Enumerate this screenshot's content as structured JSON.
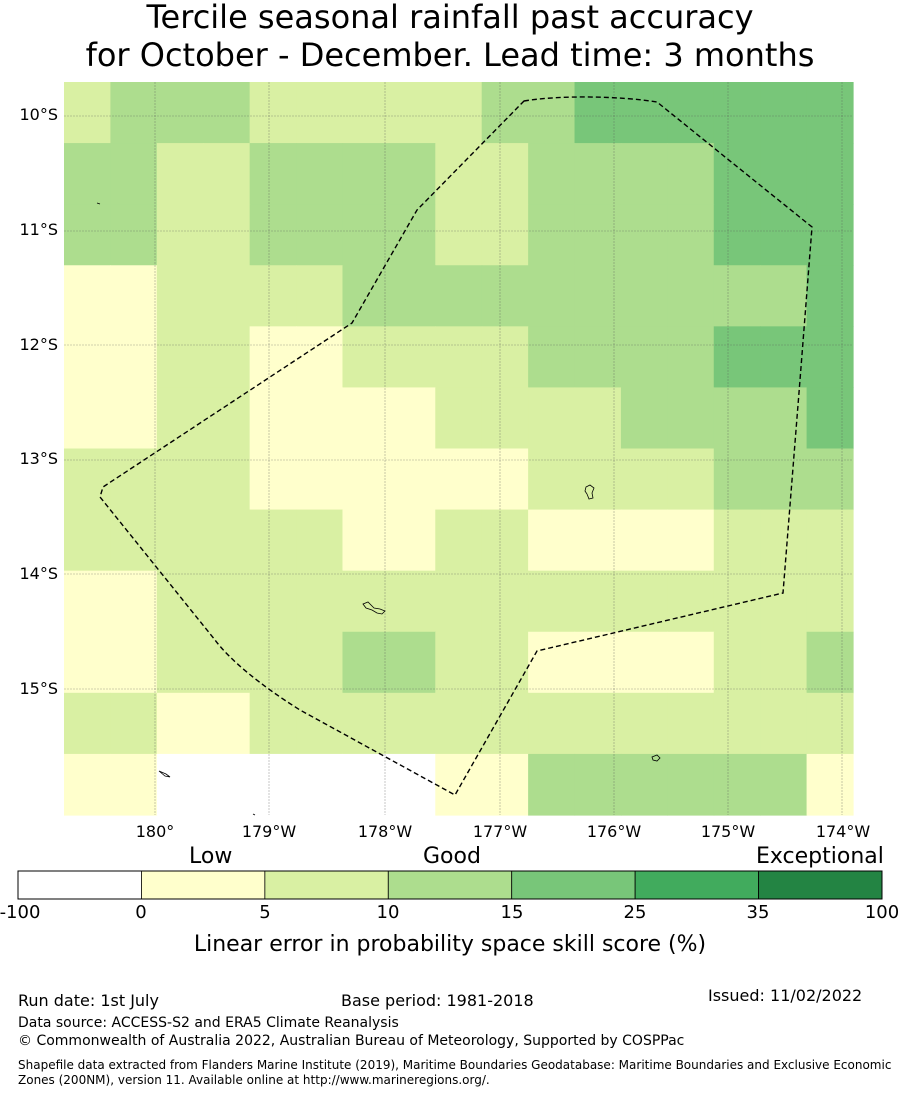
{
  "title": {
    "line1": "Tercile seasonal rainfall past accuracy",
    "line2": "for October - December. Lead time: 3 months"
  },
  "map": {
    "lat_labels": [
      "10°S",
      "11°S",
      "12°S",
      "13°S",
      "14°S",
      "15°S"
    ],
    "lon_labels": [
      "180°",
      "179°W",
      "178°W",
      "177°W",
      "176°W",
      "175°W",
      "174°W"
    ],
    "boundary_style": "dashed",
    "grid": true,
    "skill_grid_note": "rows top-to-bottom, columns left-to-right; values are colour-class indices (0 = <0, 1 = 0-5, 2 = 5-10, 3 = 10-15, 4 = 15-25)",
    "skill_grid": [
      [
        2,
        3,
        3,
        3,
        2,
        2,
        2,
        2,
        2,
        3,
        3,
        4,
        4,
        4,
        4,
        4,
        4
      ],
      [
        3,
        3,
        2,
        2,
        3,
        3,
        3,
        3,
        2,
        2,
        3,
        3,
        3,
        3,
        4,
        4,
        4
      ],
      [
        3,
        3,
        2,
        2,
        3,
        3,
        3,
        3,
        2,
        2,
        3,
        3,
        3,
        3,
        4,
        4,
        4
      ],
      [
        1,
        1,
        2,
        2,
        2,
        2,
        3,
        3,
        3,
        3,
        3,
        3,
        3,
        3,
        3,
        3,
        4
      ],
      [
        1,
        1,
        2,
        2,
        1,
        1,
        2,
        2,
        2,
        2,
        3,
        3,
        3,
        3,
        4,
        4,
        4
      ],
      [
        1,
        1,
        2,
        2,
        1,
        1,
        1,
        1,
        2,
        2,
        2,
        2,
        3,
        3,
        3,
        3,
        4
      ],
      [
        2,
        2,
        2,
        2,
        1,
        1,
        1,
        1,
        1,
        1,
        2,
        2,
        2,
        2,
        3,
        3,
        3
      ],
      [
        2,
        2,
        2,
        2,
        2,
        2,
        1,
        1,
        2,
        2,
        1,
        1,
        1,
        1,
        2,
        2,
        2
      ],
      [
        1,
        1,
        2,
        2,
        2,
        2,
        2,
        2,
        2,
        2,
        2,
        2,
        2,
        2,
        2,
        2,
        2
      ],
      [
        1,
        1,
        2,
        2,
        2,
        2,
        3,
        3,
        2,
        2,
        1,
        1,
        1,
        1,
        2,
        2,
        3
      ],
      [
        2,
        2,
        1,
        1,
        2,
        2,
        2,
        2,
        2,
        2,
        2,
        2,
        2,
        2,
        2,
        2,
        2
      ],
      [
        1,
        1,
        0,
        0,
        0,
        0,
        0,
        0,
        1,
        1,
        3,
        3,
        3,
        3,
        3,
        3,
        1
      ]
    ]
  },
  "colorbar": {
    "words": {
      "low": "Low",
      "good": "Good",
      "exceptional": "Exceptional"
    },
    "ticks": [
      "-100",
      "0",
      "5",
      "10",
      "15",
      "25",
      "35",
      "100"
    ],
    "colors": [
      "#ffffff",
      "#ffffcc",
      "#d9f0a3",
      "#addd8e",
      "#78c679",
      "#41ab5d",
      "#238443"
    ],
    "title": "Linear error in probability space skill score (%)"
  },
  "footer": {
    "run_date": "Run date: 1st July",
    "base_period": "Base period: 1981-2018",
    "issued": "Issued: 11/02/2022",
    "data_source": "Data source: ACCESS-S2 and ERA5 Climate Reanalysis",
    "copyright": "© Commonwealth of Australia 2022, Australian Bureau of Meteorology, Supported by COSPPac",
    "shapefile_line1": "Shapefile data extracted from Flanders Marine Institute (2019), Maritime Boundaries Geodatabase: Maritime Boundaries and Exclusive Economic",
    "shapefile_line2": "Zones (200NM), version 11. Available online at http://www.marineregions.org/."
  }
}
